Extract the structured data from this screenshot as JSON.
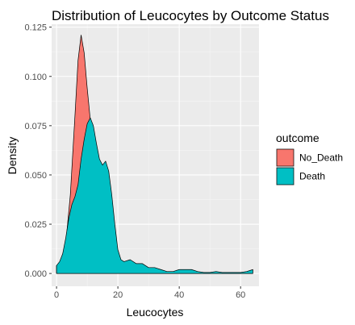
{
  "chart_data": {
    "type": "area",
    "title": "Distribution of Leucocytes by Outcome Status",
    "xlabel": "Leucocytes",
    "ylabel": "Density",
    "xlim": [
      -1.6,
      66.0
    ],
    "ylim": [
      -0.0065,
      0.1265
    ],
    "x_ticks": [
      0,
      20,
      40,
      60
    ],
    "y_ticks": [
      0.0,
      0.025,
      0.05,
      0.075,
      0.1,
      0.125
    ],
    "x_tick_labels": [
      "0",
      "20",
      "40",
      "60"
    ],
    "y_tick_labels": [
      "0.000",
      "0.025",
      "0.050",
      "0.075",
      "0.100",
      "0.125"
    ],
    "grid": true,
    "legend": {
      "title": "outcome",
      "position": "right"
    },
    "series": [
      {
        "name": "No_Death",
        "color": "#F8766D",
        "x": [
          0,
          1.5,
          3,
          4.5,
          6,
          7,
          8,
          9,
          10,
          11,
          12,
          13
        ],
        "y": [
          0.004,
          0.006,
          0.015,
          0.04,
          0.08,
          0.108,
          0.121,
          0.112,
          0.094,
          0.078,
          0.072,
          0.065
        ]
      },
      {
        "name": "Death",
        "color": "#00BFC4",
        "x": [
          0,
          1,
          2,
          3,
          4,
          5,
          6,
          7,
          8,
          9,
          10,
          11,
          12,
          13,
          14,
          15,
          16,
          17,
          18,
          19,
          20,
          21,
          22,
          24,
          26,
          28,
          30,
          32,
          34,
          36,
          38,
          40,
          42,
          44,
          46,
          48,
          50,
          52,
          54,
          56,
          58,
          60,
          62,
          64
        ],
        "y": [
          0.004,
          0.006,
          0.01,
          0.018,
          0.028,
          0.035,
          0.039,
          0.045,
          0.058,
          0.068,
          0.076,
          0.079,
          0.075,
          0.066,
          0.058,
          0.055,
          0.057,
          0.052,
          0.04,
          0.025,
          0.012,
          0.007,
          0.006,
          0.007,
          0.005,
          0.005,
          0.003,
          0.003,
          0.002,
          0.001,
          0.001,
          0.002,
          0.002,
          0.002,
          0.001,
          0.0005,
          0.0005,
          0.001,
          0.0005,
          0.0005,
          0.0005,
          0.0005,
          0.001,
          0.002
        ]
      }
    ]
  }
}
